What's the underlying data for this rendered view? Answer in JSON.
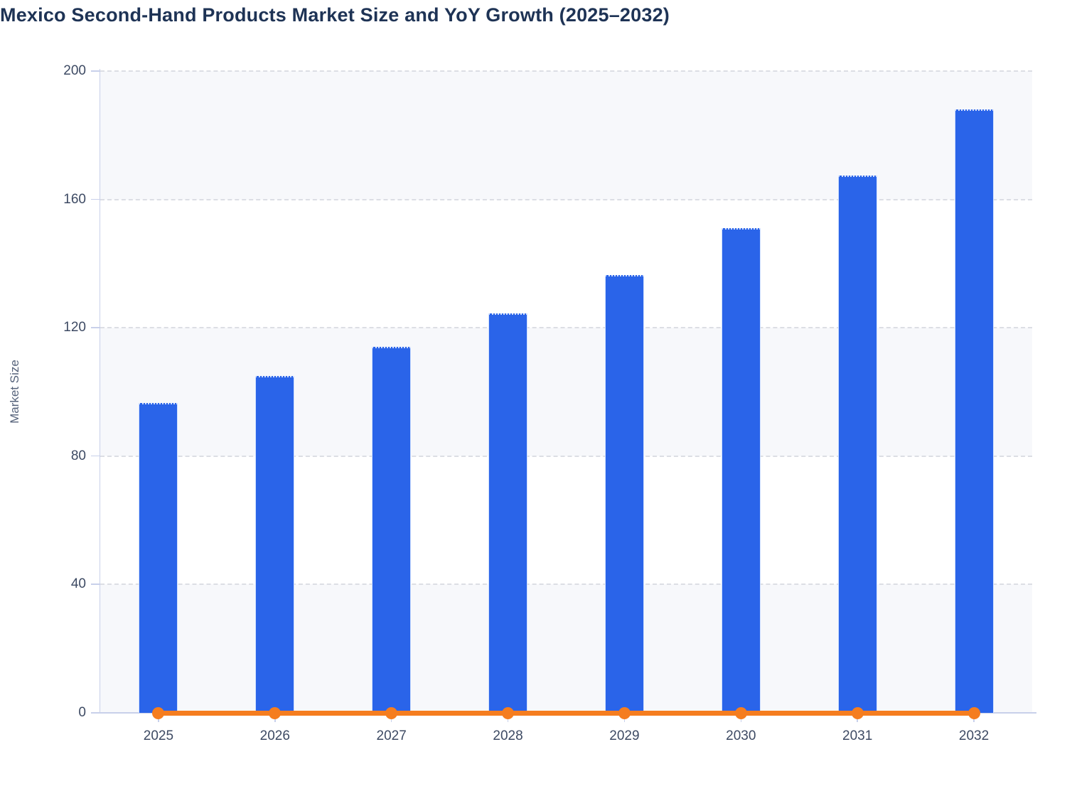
{
  "page": {
    "title": "Mexico Second-Hand Products Market Size and YoY Growth (2025–2032)"
  },
  "chart_data": {
    "type": "bar",
    "title": "Mexico Second-Hand Products Market Size and YoY Growth (2025–2032)",
    "categories": [
      "2025",
      "2026",
      "2027",
      "2028",
      "2029",
      "2030",
      "2031",
      "2032"
    ],
    "series": [
      {
        "name": "Market Size",
        "type": "bar",
        "values": [
          96.5,
          105,
          114,
          124.5,
          136.5,
          151,
          167.5,
          188
        ]
      },
      {
        "name": "YoY Growth",
        "type": "line",
        "values": [
          0,
          0,
          0,
          0,
          0,
          0,
          0,
          0
        ]
      }
    ],
    "xlabel": "",
    "ylabel": "Market Size",
    "ylim": [
      0,
      200
    ],
    "yticks": [
      0,
      40,
      80,
      120,
      160,
      200
    ],
    "grid": "horizontal dashed",
    "legend": "none",
    "alternating_bands": [
      [
        0,
        40
      ],
      [
        80,
        120
      ],
      [
        160,
        200
      ]
    ]
  },
  "colors": {
    "bar": "#2A64E9",
    "bar_edge": "#CFE0FF",
    "bar_top_dots": "rgba(255,255,255,0.8)",
    "line": "#F57D1F",
    "title": "#1E3355",
    "tick_label": "#3D4A63",
    "axis_label": "#55627A",
    "axis_line": "#C8D0EA",
    "grid_line": "#DCDEE4",
    "band_fill": "#F7F8FB",
    "background": "#FFFFFF"
  }
}
